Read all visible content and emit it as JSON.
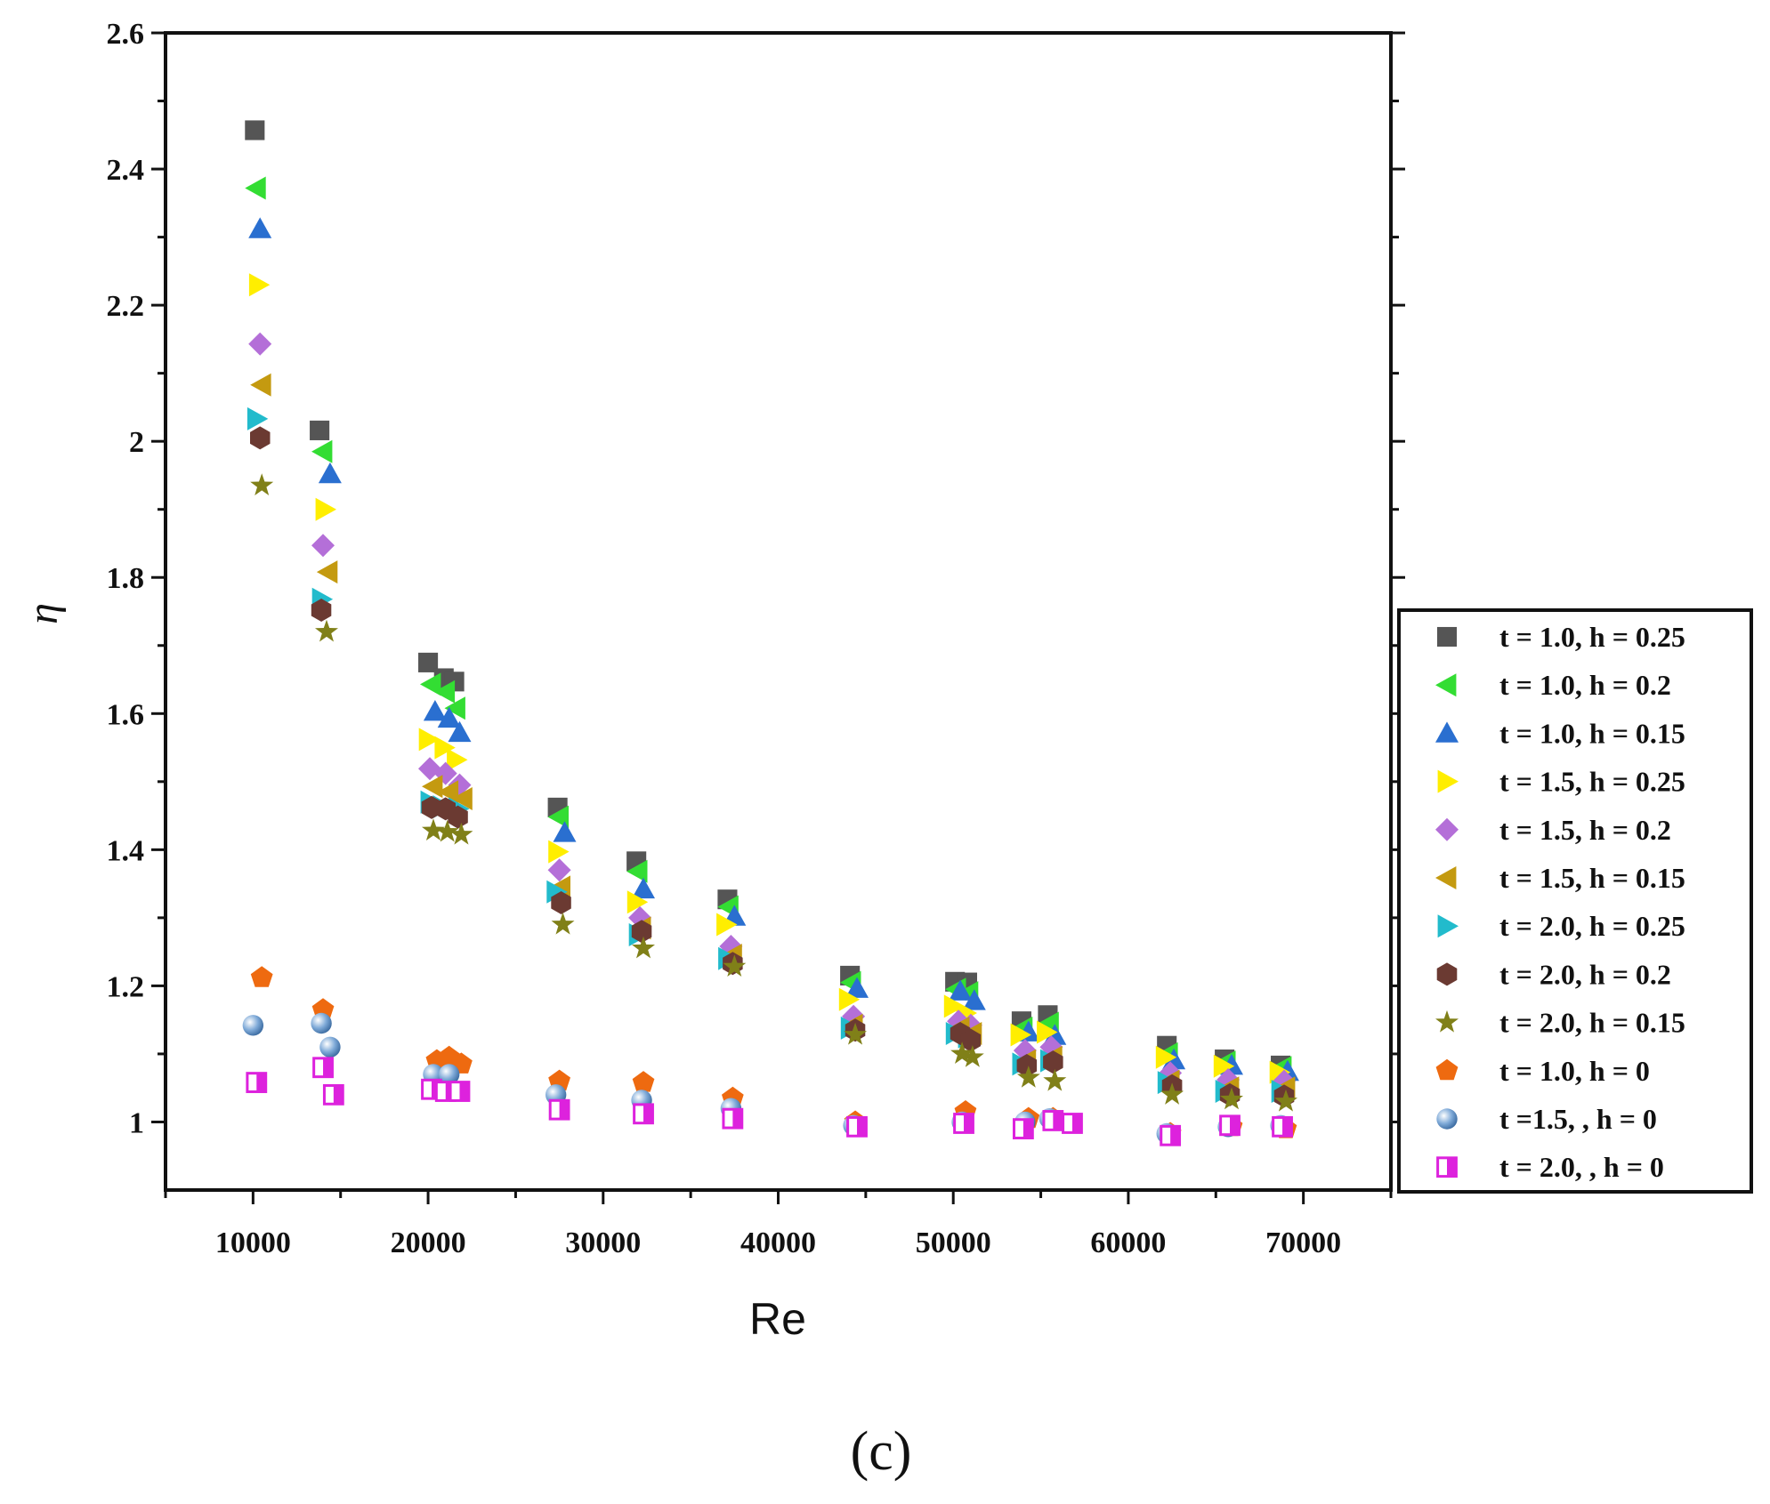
{
  "chart_data": {
    "type": "scatter",
    "title": "",
    "xlabel": "Re",
    "ylabel": "η",
    "xlim": [
      5000,
      75000
    ],
    "ylim": [
      0.9,
      2.6
    ],
    "xticks": [
      10000,
      20000,
      30000,
      40000,
      50000,
      60000,
      70000
    ],
    "yticks": [
      1,
      1.2,
      1.4,
      1.6,
      1.8,
      2,
      2.2,
      2.4,
      2.6
    ],
    "ytick_labels": [
      "1",
      "1.2",
      "1.4",
      "1.6",
      "1.8",
      "2",
      "2.2",
      "2.4",
      "2.6"
    ],
    "xtick_labels": [
      "10000",
      "20000",
      "30000",
      "40000",
      "50000",
      "60000",
      "70000"
    ],
    "legend_position": "right",
    "caption": "(c)",
    "series": [
      {
        "name": "t = 1.0, h = 0.25",
        "marker": "square",
        "color": "#555555",
        "x": [
          10100,
          13800,
          20000,
          20900,
          21500,
          27400,
          31900,
          37100,
          44100,
          50100,
          50800,
          53900,
          55400,
          62200,
          65500,
          68700
        ],
        "y": [
          2.457,
          2.016,
          1.675,
          1.652,
          1.647,
          1.462,
          1.383,
          1.327,
          1.215,
          1.206,
          1.205,
          1.148,
          1.157,
          1.112,
          1.092,
          1.083
        ]
      },
      {
        "name": "t = 1.0, h = 0.2",
        "marker": "triangle-left",
        "color": "#33dd33",
        "x": [
          10200,
          14000,
          20200,
          21000,
          21600,
          27500,
          32000,
          37200,
          44200,
          50200,
          50900,
          54000,
          55500,
          62300,
          65600,
          68800
        ],
        "y": [
          2.372,
          1.985,
          1.643,
          1.632,
          1.608,
          1.448,
          1.368,
          1.316,
          1.205,
          1.195,
          1.19,
          1.138,
          1.145,
          1.1,
          1.088,
          1.08
        ]
      },
      {
        "name": "t = 1.0, h = 0.15",
        "marker": "triangle-up",
        "color": "#2a6fd0",
        "x": [
          10400,
          14400,
          20400,
          21200,
          21800,
          27800,
          32300,
          37500,
          44500,
          50400,
          51200,
          54300,
          55800,
          62600,
          65900,
          69100
        ],
        "y": [
          2.312,
          1.952,
          1.603,
          1.593,
          1.572,
          1.425,
          1.342,
          1.302,
          1.196,
          1.192,
          1.178,
          1.132,
          1.127,
          1.091,
          1.083,
          1.074
        ]
      },
      {
        "name": "t = 1.5, h = 0.25",
        "marker": "triangle-right",
        "color": "#ffee00",
        "x": [
          10300,
          14100,
          20000,
          20900,
          21600,
          27400,
          31900,
          37000,
          44000,
          50000,
          50700,
          53800,
          55300,
          62100,
          65400,
          68600
        ],
        "y": [
          2.23,
          1.9,
          1.562,
          1.55,
          1.532,
          1.397,
          1.323,
          1.29,
          1.18,
          1.17,
          1.16,
          1.128,
          1.132,
          1.095,
          1.082,
          1.073
        ]
      },
      {
        "name": "t = 1.5, h = 0.2",
        "marker": "diamond",
        "color": "#b46fd8",
        "x": [
          10400,
          14000,
          20100,
          21000,
          21800,
          27500,
          32100,
          37300,
          44300,
          50300,
          51000,
          54100,
          55600,
          62400,
          65700,
          68900
        ],
        "y": [
          2.143,
          1.847,
          1.519,
          1.512,
          1.495,
          1.37,
          1.3,
          1.258,
          1.155,
          1.148,
          1.142,
          1.105,
          1.11,
          1.072,
          1.062,
          1.06
        ]
      },
      {
        "name": "t = 1.5, h = 0.15",
        "marker": "triangle-left",
        "color": "#c49a10",
        "x": [
          10500,
          14300,
          20300,
          21200,
          22000,
          27600,
          32200,
          37400,
          44300,
          50400,
          51100,
          54200,
          55700,
          62400,
          65800,
          69000
        ],
        "y": [
          2.083,
          1.808,
          1.493,
          1.485,
          1.475,
          1.345,
          1.285,
          1.245,
          1.142,
          1.138,
          1.13,
          1.09,
          1.095,
          1.06,
          1.05,
          1.05
        ]
      },
      {
        "name": "t = 2.0, h = 0.25",
        "marker": "triangle-right",
        "color": "#22bbcc",
        "x": [
          10200,
          13900,
          20100,
          20800,
          21700,
          27300,
          32000,
          37100,
          44100,
          50100,
          50800,
          53900,
          55500,
          62200,
          65500,
          68700
        ],
        "y": [
          2.033,
          1.768,
          1.47,
          1.463,
          1.46,
          1.338,
          1.275,
          1.24,
          1.138,
          1.13,
          1.125,
          1.085,
          1.09,
          1.058,
          1.045,
          1.045
        ]
      },
      {
        "name": "t = 2.0, h = 0.2",
        "marker": "hexagon",
        "color": "#6b3a32",
        "x": [
          10400,
          13900,
          20200,
          21000,
          21700,
          27600,
          32200,
          37400,
          44400,
          50400,
          51000,
          54200,
          55700,
          62500,
          65800,
          68900
        ],
        "y": [
          2.005,
          1.752,
          1.462,
          1.46,
          1.448,
          1.322,
          1.28,
          1.233,
          1.135,
          1.13,
          1.12,
          1.083,
          1.088,
          1.053,
          1.04,
          1.038
        ]
      },
      {
        "name": "t = 2.0, h = 0.15",
        "marker": "star",
        "color": "#808018",
        "x": [
          10500,
          14200,
          20300,
          21100,
          21900,
          27700,
          32300,
          37500,
          44400,
          50500,
          51100,
          54300,
          55800,
          62500,
          65900,
          69000
        ],
        "y": [
          1.935,
          1.72,
          1.428,
          1.426,
          1.422,
          1.29,
          1.255,
          1.228,
          1.128,
          1.1,
          1.095,
          1.065,
          1.06,
          1.04,
          1.033,
          1.03
        ]
      },
      {
        "name": "t = 1.0, h = 0",
        "marker": "pentagon",
        "color": "#ee6a10",
        "x": [
          10500,
          14000,
          20500,
          21200,
          21900,
          27500,
          32300,
          37400,
          44400,
          50700,
          54300,
          55700,
          62400,
          65900,
          69000
        ],
        "y": [
          1.212,
          1.165,
          1.09,
          1.095,
          1.085,
          1.06,
          1.058,
          1.035,
          1.0,
          1.015,
          1.005,
          1.005,
          0.983,
          0.993,
          0.99
        ]
      },
      {
        "name": "t =1.5, , h = 0",
        "marker": "sphere",
        "color": "#6f9fd0",
        "x": [
          10000,
          13900,
          14400,
          20300,
          21200,
          27300,
          32200,
          37300,
          44300,
          50500,
          54100,
          55500,
          62200,
          65700,
          68700
        ],
        "y": [
          1.142,
          1.145,
          1.11,
          1.07,
          1.07,
          1.04,
          1.032,
          1.02,
          0.995,
          1.0,
          1.0,
          1.005,
          0.983,
          0.993,
          0.995
        ]
      },
      {
        "name": "t = 2.0, , h = 0",
        "marker": "half-square",
        "color": "#dd22dd",
        "x": [
          10200,
          14000,
          14600,
          20200,
          21000,
          21800,
          27500,
          32300,
          37400,
          44500,
          50600,
          54000,
          55700,
          56800,
          62400,
          65800,
          68800
        ],
        "y": [
          1.058,
          1.08,
          1.04,
          1.048,
          1.045,
          1.045,
          1.018,
          1.012,
          1.005,
          0.993,
          0.998,
          0.99,
          1.002,
          0.998,
          0.98,
          0.995,
          0.993
        ]
      }
    ]
  }
}
